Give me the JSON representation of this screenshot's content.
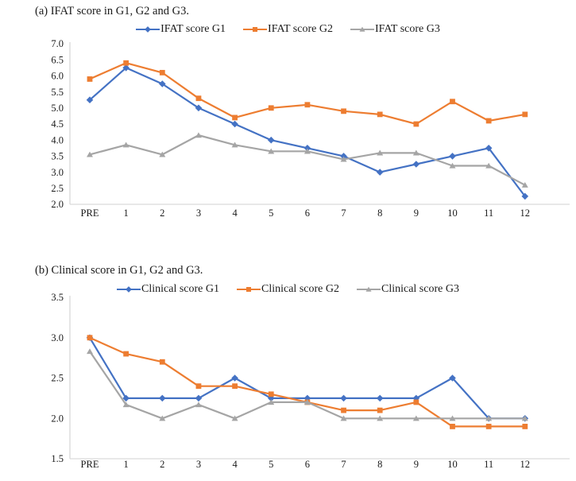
{
  "page": {
    "background": "#ffffff",
    "text_color": "#1a1a1a",
    "axis_color": "#d9d9d9"
  },
  "chart_data": [
    {
      "id": "ifat",
      "type": "line",
      "title": "(a) IFAT score in G1, G2 and G3.",
      "xlabel": "",
      "ylabel": "",
      "categories": [
        "PRE",
        "1",
        "2",
        "3",
        "4",
        "5",
        "6",
        "7",
        "8",
        "9",
        "10",
        "11",
        "12"
      ],
      "ylim": [
        2.0,
        7.0
      ],
      "yticks": [
        "7.0",
        "6.5",
        "6.0",
        "5.5",
        "5.0",
        "4.5",
        "4.0",
        "3.5",
        "3.0",
        "2.5",
        "2.0"
      ],
      "grid": false,
      "legend_position": "top-center",
      "series": [
        {
          "name": "IFAT score G1",
          "color": "#4472C4",
          "marker": "diamond",
          "values": [
            5.25,
            6.25,
            5.75,
            5.0,
            4.5,
            4.0,
            3.75,
            3.5,
            3.0,
            3.25,
            3.5,
            3.75,
            2.25
          ]
        },
        {
          "name": "IFAT score G2",
          "color": "#ED7D31",
          "marker": "square",
          "values": [
            5.9,
            6.4,
            6.1,
            5.3,
            4.7,
            5.0,
            5.1,
            4.9,
            4.8,
            4.5,
            5.2,
            4.6,
            4.8
          ]
        },
        {
          "name": "IFAT score G3",
          "color": "#A5A5A5",
          "marker": "triangle",
          "values": [
            3.55,
            3.85,
            3.55,
            4.15,
            3.85,
            3.65,
            3.65,
            3.4,
            3.6,
            3.6,
            3.2,
            3.2,
            2.6
          ]
        }
      ]
    },
    {
      "id": "clinical",
      "type": "line",
      "title": "(b) Clinical score in G1, G2 and G3.",
      "xlabel": "",
      "ylabel": "",
      "categories": [
        "PRE",
        "1",
        "2",
        "3",
        "4",
        "5",
        "6",
        "7",
        "8",
        "9",
        "10",
        "11",
        "12"
      ],
      "ylim": [
        1.5,
        3.5
      ],
      "yticks": [
        "3.5",
        "3.0",
        "2.5",
        "2.0",
        "1.5"
      ],
      "grid": false,
      "legend_position": "top-center",
      "series": [
        {
          "name": "Clinical score G1",
          "color": "#4472C4",
          "marker": "diamond",
          "values": [
            3.0,
            2.25,
            2.25,
            2.25,
            2.5,
            2.25,
            2.25,
            2.25,
            2.25,
            2.25,
            2.5,
            2.0,
            2.0
          ]
        },
        {
          "name": "Clinical score G2",
          "color": "#ED7D31",
          "marker": "square",
          "values": [
            3.0,
            2.8,
            2.7,
            2.4,
            2.4,
            2.3,
            2.2,
            2.1,
            2.1,
            2.2,
            1.9,
            1.9,
            1.9
          ]
        },
        {
          "name": "Clinical score G3",
          "color": "#A5A5A5",
          "marker": "triangle",
          "values": [
            2.83,
            2.17,
            2.0,
            2.17,
            2.0,
            2.2,
            2.2,
            2.0,
            2.0,
            2.0,
            2.0,
            2.0,
            2.0
          ]
        }
      ]
    }
  ]
}
